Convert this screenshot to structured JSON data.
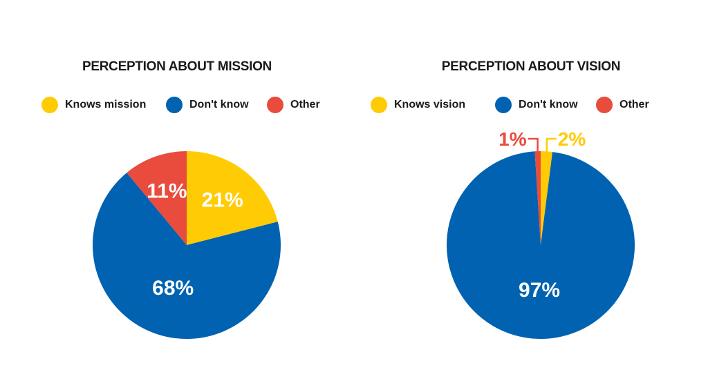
{
  "chart_data": [
    {
      "type": "pie",
      "title": "PERCEPTION ABOUT MISSION",
      "categories": [
        "Knows mission",
        "Don't know",
        "Other"
      ],
      "values": [
        21,
        68,
        11
      ],
      "value_labels": [
        "21%",
        "68%",
        "11%"
      ],
      "colors": [
        "#FFCB05",
        "#0062B0",
        "#E94B3C"
      ],
      "legend_position": "top"
    },
    {
      "type": "pie",
      "title": "PERCEPTION ABOUT VISION",
      "categories": [
        "Knows vision",
        "Don't know",
        "Other"
      ],
      "values": [
        2,
        97,
        1
      ],
      "value_labels": [
        "2%",
        "97%",
        "1%"
      ],
      "colors": [
        "#FFCB05",
        "#0062B0",
        "#E94B3C"
      ],
      "legend_position": "top"
    }
  ]
}
